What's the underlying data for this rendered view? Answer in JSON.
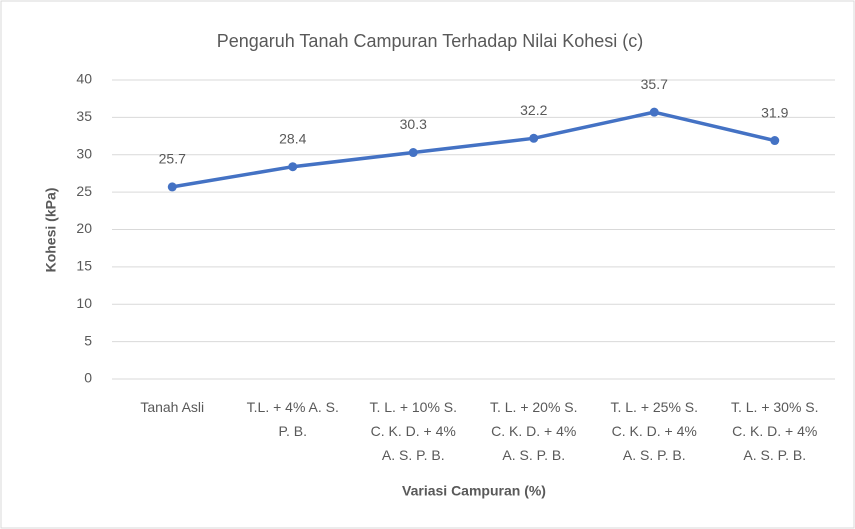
{
  "chart_data": {
    "type": "line",
    "title": "Pengaruh Tanah Campuran Terhadap Nilai Kohesi (c)",
    "x_label": "Variasi Campuran (%)",
    "y_label": "Kohesi (kPa)",
    "categories": [
      "Tanah Asli",
      "T.L. + 4% A. S. P. B.",
      "T. L. + 10% S. C. K. D. + 4% A. S. P. B.",
      "T. L. + 20% S. C. K. D. + 4% A. S. P. B.",
      "T. L. + 25% S. C. K. D. + 4% A. S. P. B.",
      "T. L. + 30% S. C. K. D. + 4% A. S. P. B."
    ],
    "values": [
      25.7,
      28.4,
      30.3,
      32.2,
      35.7,
      31.9
    ],
    "color": "#4472c4",
    "ylim": [
      0,
      40
    ],
    "yticks": [
      0,
      5,
      10,
      15,
      20,
      25,
      30,
      35,
      40
    ],
    "grid": true
  }
}
